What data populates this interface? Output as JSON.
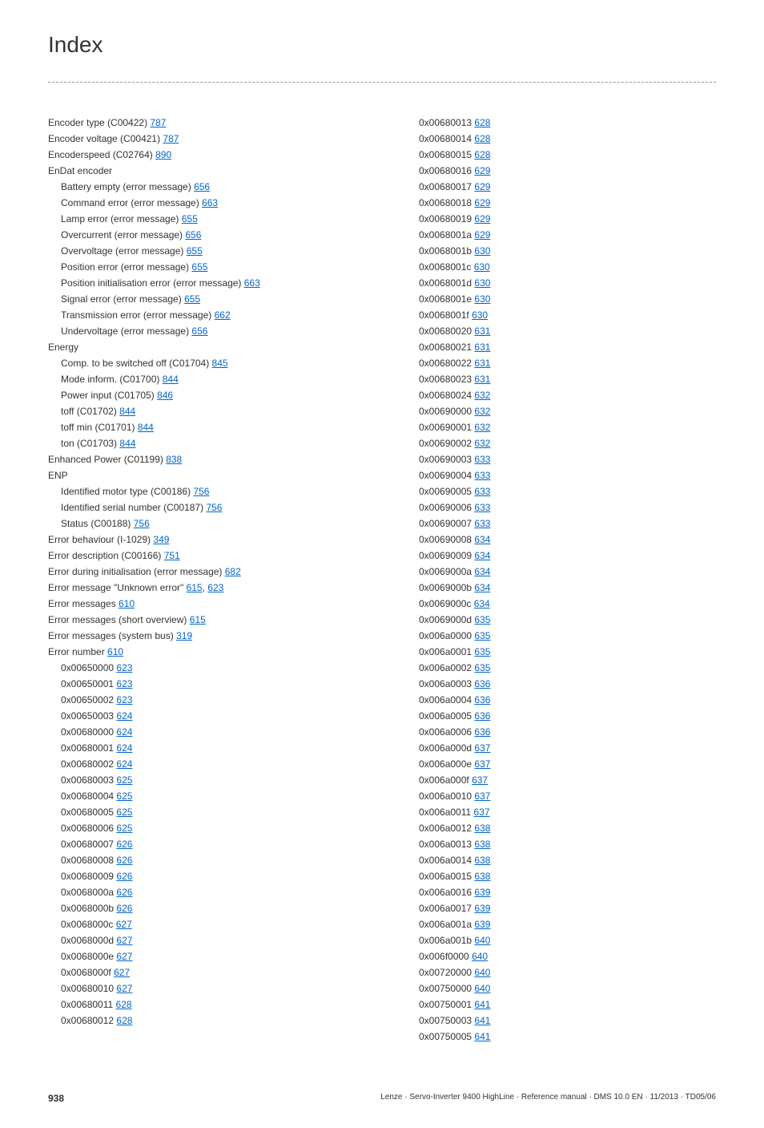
{
  "title": "Index",
  "footer": {
    "pageNum": "938",
    "citation": "Lenze · Servo-Inverter 9400 HighLine · Reference manual · DMS 10.0 EN · 11/2013 · TD05/06"
  },
  "leftColumn": [
    {
      "indent": 0,
      "text": "Encoder type (C00422) ",
      "link": "787"
    },
    {
      "indent": 0,
      "text": "Encoder voltage (C00421) ",
      "link": "787"
    },
    {
      "indent": 0,
      "text": "Encoderspeed (C02764) ",
      "link": "890"
    },
    {
      "indent": 0,
      "text": "EnDat encoder"
    },
    {
      "indent": 1,
      "text": "Battery empty (error message) ",
      "link": "656"
    },
    {
      "indent": 1,
      "text": "Command error (error message) ",
      "link": "663"
    },
    {
      "indent": 1,
      "text": "Lamp error (error message) ",
      "link": "655"
    },
    {
      "indent": 1,
      "text": "Overcurrent (error message) ",
      "link": "656"
    },
    {
      "indent": 1,
      "text": "Overvoltage (error message) ",
      "link": "655"
    },
    {
      "indent": 1,
      "text": "Position error (error message) ",
      "link": "655"
    },
    {
      "indent": 1,
      "text": "Position initialisation error (error message) ",
      "link": "663"
    },
    {
      "indent": 1,
      "text": "Signal error (error message) ",
      "link": "655"
    },
    {
      "indent": 1,
      "text": "Transmission error (error message) ",
      "link": "662"
    },
    {
      "indent": 1,
      "text": "Undervoltage (error message) ",
      "link": "656"
    },
    {
      "indent": 0,
      "text": "Energy"
    },
    {
      "indent": 1,
      "text": "Comp. to be switched off (C01704) ",
      "link": "845"
    },
    {
      "indent": 1,
      "text": "Mode inform. (C01700) ",
      "link": "844"
    },
    {
      "indent": 1,
      "text": "Power input (C01705) ",
      "link": "846"
    },
    {
      "indent": 1,
      "text": "toff (C01702) ",
      "link": "844"
    },
    {
      "indent": 1,
      "text": "toff min (C01701) ",
      "link": "844"
    },
    {
      "indent": 1,
      "text": "ton (C01703) ",
      "link": "844"
    },
    {
      "indent": 0,
      "text": "Enhanced Power (C01199) ",
      "link": "838"
    },
    {
      "indent": 0,
      "text": "ENP"
    },
    {
      "indent": 1,
      "text": "Identified motor type (C00186) ",
      "link": "756"
    },
    {
      "indent": 1,
      "text": "Identified serial number (C00187) ",
      "link": "756"
    },
    {
      "indent": 1,
      "text": "Status (C00188) ",
      "link": "756"
    },
    {
      "indent": 0,
      "text": "Error behaviour (I-1029) ",
      "link": "349"
    },
    {
      "indent": 0,
      "text": "Error description (C00166) ",
      "link": "751"
    },
    {
      "indent": 0,
      "text": "Error during initialisation (error message) ",
      "link": "682"
    },
    {
      "indent": 0,
      "text": "Error message \"Unknown error\" ",
      "link": "615",
      "extra": ", ",
      "link2": "623"
    },
    {
      "indent": 0,
      "text": "Error messages ",
      "link": "610"
    },
    {
      "indent": 0,
      "text": "Error messages (short overview) ",
      "link": "615"
    },
    {
      "indent": 0,
      "text": "Error messages (system bus) ",
      "link": "319"
    },
    {
      "indent": 0,
      "text": "Error number ",
      "link": "610"
    },
    {
      "indent": 1,
      "text": "0x00650000 ",
      "link": "623"
    },
    {
      "indent": 1,
      "text": "0x00650001 ",
      "link": "623"
    },
    {
      "indent": 1,
      "text": "0x00650002 ",
      "link": "623"
    },
    {
      "indent": 1,
      "text": "0x00650003 ",
      "link": "624"
    },
    {
      "indent": 1,
      "text": "0x00680000 ",
      "link": "624"
    },
    {
      "indent": 1,
      "text": "0x00680001 ",
      "link": "624"
    },
    {
      "indent": 1,
      "text": "0x00680002 ",
      "link": "624"
    },
    {
      "indent": 1,
      "text": "0x00680003 ",
      "link": "625"
    },
    {
      "indent": 1,
      "text": "0x00680004 ",
      "link": "625"
    },
    {
      "indent": 1,
      "text": "0x00680005 ",
      "link": "625"
    },
    {
      "indent": 1,
      "text": "0x00680006 ",
      "link": "625"
    },
    {
      "indent": 1,
      "text": "0x00680007 ",
      "link": "626"
    },
    {
      "indent": 1,
      "text": "0x00680008 ",
      "link": "626"
    },
    {
      "indent": 1,
      "text": "0x00680009 ",
      "link": "626"
    },
    {
      "indent": 1,
      "text": "0x0068000a ",
      "link": "626"
    },
    {
      "indent": 1,
      "text": "0x0068000b ",
      "link": "626"
    },
    {
      "indent": 1,
      "text": "0x0068000c ",
      "link": "627"
    },
    {
      "indent": 1,
      "text": "0x0068000d ",
      "link": "627"
    },
    {
      "indent": 1,
      "text": "0x0068000e ",
      "link": "627"
    },
    {
      "indent": 1,
      "text": "0x0068000f ",
      "link": "627"
    },
    {
      "indent": 1,
      "text": "0x00680010 ",
      "link": "627"
    },
    {
      "indent": 1,
      "text": "0x00680011 ",
      "link": "628"
    },
    {
      "indent": 1,
      "text": "0x00680012 ",
      "link": "628"
    }
  ],
  "rightColumn": [
    {
      "indent": 1,
      "text": "0x00680013 ",
      "link": "628"
    },
    {
      "indent": 1,
      "text": "0x00680014 ",
      "link": "628"
    },
    {
      "indent": 1,
      "text": "0x00680015 ",
      "link": "628"
    },
    {
      "indent": 1,
      "text": "0x00680016 ",
      "link": "629"
    },
    {
      "indent": 1,
      "text": "0x00680017 ",
      "link": "629"
    },
    {
      "indent": 1,
      "text": "0x00680018 ",
      "link": "629"
    },
    {
      "indent": 1,
      "text": "0x00680019 ",
      "link": "629"
    },
    {
      "indent": 1,
      "text": "0x0068001a ",
      "link": "629"
    },
    {
      "indent": 1,
      "text": "0x0068001b ",
      "link": "630"
    },
    {
      "indent": 1,
      "text": "0x0068001c ",
      "link": "630"
    },
    {
      "indent": 1,
      "text": "0x0068001d ",
      "link": "630"
    },
    {
      "indent": 1,
      "text": "0x0068001e ",
      "link": "630"
    },
    {
      "indent": 1,
      "text": "0x0068001f ",
      "link": "630"
    },
    {
      "indent": 1,
      "text": "0x00680020 ",
      "link": "631"
    },
    {
      "indent": 1,
      "text": "0x00680021 ",
      "link": "631"
    },
    {
      "indent": 1,
      "text": "0x00680022 ",
      "link": "631"
    },
    {
      "indent": 1,
      "text": "0x00680023 ",
      "link": "631"
    },
    {
      "indent": 1,
      "text": "0x00680024 ",
      "link": "632"
    },
    {
      "indent": 1,
      "text": "0x00690000 ",
      "link": "632"
    },
    {
      "indent": 1,
      "text": "0x00690001 ",
      "link": "632"
    },
    {
      "indent": 1,
      "text": "0x00690002 ",
      "link": "632"
    },
    {
      "indent": 1,
      "text": "0x00690003 ",
      "link": "633"
    },
    {
      "indent": 1,
      "text": "0x00690004 ",
      "link": "633"
    },
    {
      "indent": 1,
      "text": "0x00690005 ",
      "link": "633"
    },
    {
      "indent": 1,
      "text": "0x00690006 ",
      "link": "633"
    },
    {
      "indent": 1,
      "text": "0x00690007 ",
      "link": "633"
    },
    {
      "indent": 1,
      "text": "0x00690008 ",
      "link": "634"
    },
    {
      "indent": 1,
      "text": "0x00690009 ",
      "link": "634"
    },
    {
      "indent": 1,
      "text": "0x0069000a ",
      "link": "634"
    },
    {
      "indent": 1,
      "text": "0x0069000b ",
      "link": "634"
    },
    {
      "indent": 1,
      "text": "0x0069000c ",
      "link": "634"
    },
    {
      "indent": 1,
      "text": "0x0069000d ",
      "link": "635"
    },
    {
      "indent": 1,
      "text": "0x006a0000 ",
      "link": "635"
    },
    {
      "indent": 1,
      "text": "0x006a0001 ",
      "link": "635"
    },
    {
      "indent": 1,
      "text": "0x006a0002 ",
      "link": "635"
    },
    {
      "indent": 1,
      "text": "0x006a0003 ",
      "link": "636"
    },
    {
      "indent": 1,
      "text": "0x006a0004 ",
      "link": "636"
    },
    {
      "indent": 1,
      "text": "0x006a0005 ",
      "link": "636"
    },
    {
      "indent": 1,
      "text": "0x006a0006 ",
      "link": "636"
    },
    {
      "indent": 1,
      "text": "0x006a000d ",
      "link": "637"
    },
    {
      "indent": 1,
      "text": "0x006a000e ",
      "link": "637"
    },
    {
      "indent": 1,
      "text": "0x006a000f ",
      "link": "637"
    },
    {
      "indent": 1,
      "text": "0x006a0010 ",
      "link": "637"
    },
    {
      "indent": 1,
      "text": "0x006a0011 ",
      "link": "637"
    },
    {
      "indent": 1,
      "text": "0x006a0012 ",
      "link": "638"
    },
    {
      "indent": 1,
      "text": "0x006a0013 ",
      "link": "638"
    },
    {
      "indent": 1,
      "text": "0x006a0014 ",
      "link": "638"
    },
    {
      "indent": 1,
      "text": "0x006a0015 ",
      "link": "638"
    },
    {
      "indent": 1,
      "text": "0x006a0016 ",
      "link": "639"
    },
    {
      "indent": 1,
      "text": "0x006a0017 ",
      "link": "639"
    },
    {
      "indent": 1,
      "text": "0x006a001a ",
      "link": "639"
    },
    {
      "indent": 1,
      "text": "0x006a001b ",
      "link": "640"
    },
    {
      "indent": 1,
      "text": "0x006f0000 ",
      "link": "640"
    },
    {
      "indent": 1,
      "text": "0x00720000 ",
      "link": "640"
    },
    {
      "indent": 1,
      "text": "0x00750000 ",
      "link": "640"
    },
    {
      "indent": 1,
      "text": "0x00750001 ",
      "link": "641"
    },
    {
      "indent": 1,
      "text": "0x00750003 ",
      "link": "641"
    },
    {
      "indent": 1,
      "text": "0x00750005 ",
      "link": "641"
    }
  ]
}
